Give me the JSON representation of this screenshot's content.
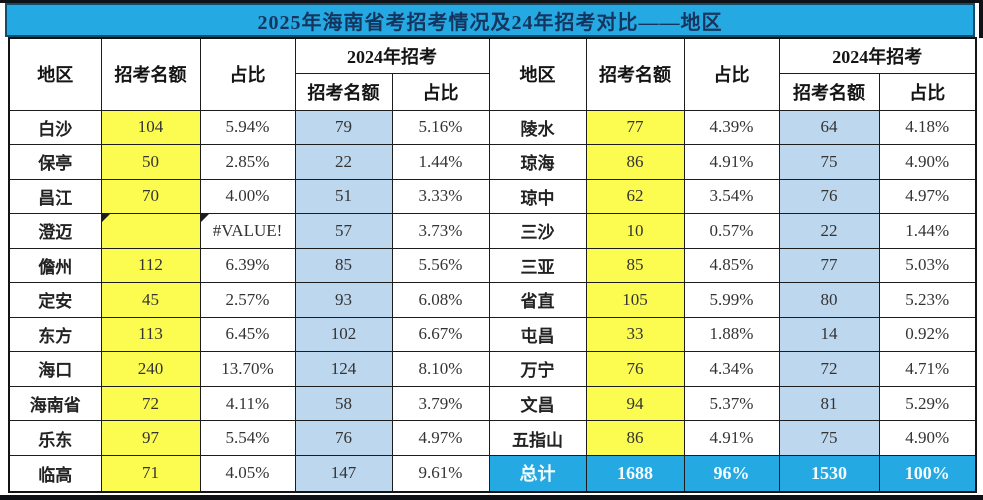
{
  "title": "2025年海南省考招考情况及24年招考对比——地区",
  "colors": {
    "accent_cyan": "#25a9e2",
    "title_text": "#16355e",
    "quota_2025_bg": "#fbfb50",
    "quota_2024_bg": "#bdd7ee",
    "grid_line": "#1c1c1c",
    "total_row_bg": "#25a9e2",
    "total_row_text": "#ffffff"
  },
  "chart_data": {
    "type": "table",
    "title": "2025年海南省考招考情况及24年招考对比——地区",
    "layout": "two side-by-side table halves sharing identical headers; grid on; last right-side row is a highlighted total row",
    "header": {
      "region": "地区",
      "quota_2025": "招考名额",
      "share_2025": "占比",
      "group_2024": "2024年招考",
      "quota_2024": "招考名额",
      "share_2024": "占比"
    },
    "left_rows": [
      {
        "region": "白沙",
        "quota": "104",
        "share": "5.94%",
        "quota24": "79",
        "share24": "5.16%"
      },
      {
        "region": "保亭",
        "quota": "50",
        "share": "2.85%",
        "quota24": "22",
        "share24": "1.44%"
      },
      {
        "region": "昌江",
        "quota": "70",
        "share": "4.00%",
        "quota24": "51",
        "share24": "3.33%"
      },
      {
        "region": "澄迈",
        "quota": "",
        "share": "#VALUE!",
        "quota24": "57",
        "share24": "3.73%",
        "error_cells": [
          "quota",
          "share"
        ]
      },
      {
        "region": "儋州",
        "quota": "112",
        "share": "6.39%",
        "quota24": "85",
        "share24": "5.56%"
      },
      {
        "region": "定安",
        "quota": "45",
        "share": "2.57%",
        "quota24": "93",
        "share24": "6.08%"
      },
      {
        "region": "东方",
        "quota": "113",
        "share": "6.45%",
        "quota24": "102",
        "share24": "6.67%"
      },
      {
        "region": "海口",
        "quota": "240",
        "share": "13.70%",
        "quota24": "124",
        "share24": "8.10%"
      },
      {
        "region": "海南省",
        "quota": "72",
        "share": "4.11%",
        "quota24": "58",
        "share24": "3.79%"
      },
      {
        "region": "乐东",
        "quota": "97",
        "share": "5.54%",
        "quota24": "76",
        "share24": "4.97%"
      },
      {
        "region": "临高",
        "quota": "71",
        "share": "4.05%",
        "quota24": "147",
        "share24": "9.61%"
      }
    ],
    "right_rows": [
      {
        "region": "陵水",
        "quota": "77",
        "share": "4.39%",
        "quota24": "64",
        "share24": "4.18%"
      },
      {
        "region": "琼海",
        "quota": "86",
        "share": "4.91%",
        "quota24": "75",
        "share24": "4.90%"
      },
      {
        "region": "琼中",
        "quota": "62",
        "share": "3.54%",
        "quota24": "76",
        "share24": "4.97%"
      },
      {
        "region": "三沙",
        "quota": "10",
        "share": "0.57%",
        "quota24": "22",
        "share24": "1.44%"
      },
      {
        "region": "三亚",
        "quota": "85",
        "share": "4.85%",
        "quota24": "77",
        "share24": "5.03%"
      },
      {
        "region": "省直",
        "quota": "105",
        "share": "5.99%",
        "quota24": "80",
        "share24": "5.23%"
      },
      {
        "region": "屯昌",
        "quota": "33",
        "share": "1.88%",
        "quota24": "14",
        "share24": "0.92%"
      },
      {
        "region": "万宁",
        "quota": "76",
        "share": "4.34%",
        "quota24": "72",
        "share24": "4.71%"
      },
      {
        "region": "文昌",
        "quota": "94",
        "share": "5.37%",
        "quota24": "81",
        "share24": "5.29%"
      },
      {
        "region": "五指山",
        "quota": "86",
        "share": "4.91%",
        "quota24": "75",
        "share24": "4.90%"
      },
      {
        "region": "总计",
        "quota": "1688",
        "share": "96%",
        "quota24": "1530",
        "share24": "100%",
        "is_total": true
      }
    ]
  }
}
